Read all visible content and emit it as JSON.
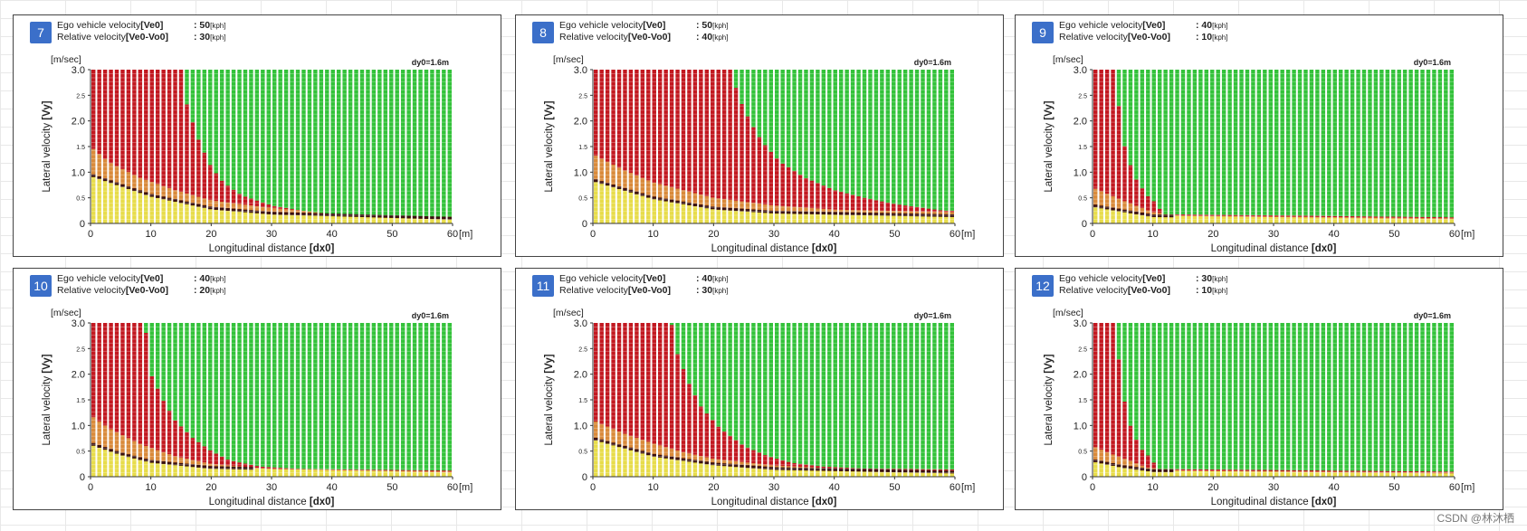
{
  "common": {
    "y_unit": "[m/sec]",
    "x_unit": "[m]",
    "dy0": "dy0=1.6m",
    "ylabel": "Lateral velocity",
    "ylabel_suffix": "[Vy]",
    "xlabel": "Longitudinal distance",
    "xlabel_suffix": "[dx0]",
    "ego_label": "Ego vehicle velocity",
    "ego_var": "[Ve0]",
    "rel_label": "Relative velocity",
    "rel_var": "[Ve0-Vo0]",
    "speed_unit": "[kph]",
    "colon": ": "
  },
  "colors": {
    "red": "#c21820",
    "green": "#33c23a",
    "orange": "#d98a3a",
    "yellow": "#e7dc4a",
    "dark": "#3a1010",
    "badge": "#3b6fc9"
  },
  "chart_data": [
    {
      "id": "7",
      "ego_velocity": "50",
      "relative_velocity": "30",
      "type": "scatter",
      "x_ticks": [
        "0",
        "10",
        "20",
        "30",
        "40",
        "50",
        "60"
      ],
      "y_ticks": [
        "0",
        "0.5",
        "1.0",
        "1.5",
        "2.0",
        "2.5",
        "3.0"
      ],
      "xlim": [
        0,
        60
      ],
      "ylim": [
        0,
        3
      ],
      "red_boundary": [
        [
          0,
          3
        ],
        [
          15,
          3
        ],
        [
          16,
          2.3
        ],
        [
          18,
          1.6
        ],
        [
          20,
          1.1
        ],
        [
          22,
          0.8
        ],
        [
          25,
          0.55
        ],
        [
          30,
          0.35
        ],
        [
          35,
          0.25
        ],
        [
          40,
          0.18
        ],
        [
          50,
          0.14
        ],
        [
          60,
          0.13
        ]
      ],
      "orange_boundary": [
        [
          0,
          1.5
        ],
        [
          3,
          1.2
        ],
        [
          8,
          0.9
        ],
        [
          14,
          0.65
        ],
        [
          20,
          0.45
        ],
        [
          30,
          0.3
        ],
        [
          40,
          0.2
        ],
        [
          60,
          0.13
        ]
      ],
      "yellow_boundary": [
        [
          0,
          0.95
        ],
        [
          5,
          0.75
        ],
        [
          10,
          0.55
        ],
        [
          20,
          0.3
        ],
        [
          30,
          0.2
        ],
        [
          60,
          0.1
        ]
      ]
    },
    {
      "id": "8",
      "ego_velocity": "50",
      "relative_velocity": "40",
      "type": "scatter",
      "x_ticks": [
        "0",
        "10",
        "20",
        "30",
        "40",
        "50",
        "60"
      ],
      "y_ticks": [
        "0",
        "0.5",
        "1.0",
        "1.5",
        "2.0",
        "2.5",
        "3.0"
      ],
      "xlim": [
        0,
        60
      ],
      "ylim": [
        0,
        3
      ],
      "red_boundary": [
        [
          0,
          3
        ],
        [
          23,
          3
        ],
        [
          24,
          2.5
        ],
        [
          26,
          2.0
        ],
        [
          28,
          1.6
        ],
        [
          31,
          1.2
        ],
        [
          35,
          0.9
        ],
        [
          40,
          0.65
        ],
        [
          45,
          0.5
        ],
        [
          50,
          0.38
        ],
        [
          55,
          0.3
        ],
        [
          58,
          0.25
        ],
        [
          60,
          0.25
        ]
      ],
      "orange_boundary": [
        [
          0,
          1.35
        ],
        [
          5,
          1.05
        ],
        [
          10,
          0.8
        ],
        [
          20,
          0.5
        ],
        [
          30,
          0.35
        ],
        [
          40,
          0.27
        ],
        [
          60,
          0.22
        ]
      ],
      "yellow_boundary": [
        [
          0,
          0.85
        ],
        [
          10,
          0.5
        ],
        [
          20,
          0.3
        ],
        [
          30,
          0.22
        ],
        [
          60,
          0.15
        ]
      ]
    },
    {
      "id": "9",
      "ego_velocity": "40",
      "relative_velocity": "10",
      "type": "scatter",
      "x_ticks": [
        "0",
        "10",
        "20",
        "30",
        "40",
        "50",
        "60"
      ],
      "y_ticks": [
        "0",
        "0.5",
        "1.0",
        "1.5",
        "2.0",
        "2.5",
        "3.0"
      ],
      "xlim": [
        0,
        60
      ],
      "ylim": [
        0,
        3
      ],
      "red_boundary": [
        [
          0,
          3
        ],
        [
          4,
          3
        ],
        [
          4.5,
          2.0
        ],
        [
          5.5,
          1.4
        ],
        [
          7,
          0.9
        ],
        [
          9,
          0.55
        ],
        [
          10.5,
          0.4
        ],
        [
          11,
          0.3
        ],
        [
          12,
          0.18
        ],
        [
          60,
          0.12
        ]
      ],
      "orange_boundary": [
        [
          0,
          0.7
        ],
        [
          3,
          0.55
        ],
        [
          6,
          0.4
        ],
        [
          10,
          0.22
        ],
        [
          15,
          0.15
        ],
        [
          60,
          0.1
        ]
      ],
      "yellow_boundary": [
        [
          0,
          0.35
        ],
        [
          5,
          0.25
        ],
        [
          10,
          0.15
        ],
        [
          60,
          0.08
        ]
      ]
    },
    {
      "id": "10",
      "ego_velocity": "40",
      "relative_velocity": "20",
      "type": "scatter",
      "x_ticks": [
        "0",
        "10",
        "20",
        "30",
        "40",
        "50",
        "60"
      ],
      "y_ticks": [
        "0",
        "0.5",
        "1.0",
        "1.5",
        "2.0",
        "2.5",
        "3.0"
      ],
      "xlim": [
        0,
        60
      ],
      "ylim": [
        0,
        3
      ],
      "red_boundary": [
        [
          0,
          3
        ],
        [
          9,
          3
        ],
        [
          10,
          2.0
        ],
        [
          12,
          1.5
        ],
        [
          14,
          1.1
        ],
        [
          17,
          0.75
        ],
        [
          20,
          0.5
        ],
        [
          23,
          0.32
        ],
        [
          28,
          0.2
        ],
        [
          35,
          0.15
        ],
        [
          60,
          0.12
        ]
      ],
      "orange_boundary": [
        [
          0,
          1.2
        ],
        [
          3,
          0.95
        ],
        [
          8,
          0.65
        ],
        [
          14,
          0.4
        ],
        [
          20,
          0.25
        ],
        [
          30,
          0.15
        ],
        [
          60,
          0.1
        ]
      ],
      "yellow_boundary": [
        [
          0,
          0.65
        ],
        [
          5,
          0.45
        ],
        [
          10,
          0.3
        ],
        [
          20,
          0.18
        ],
        [
          60,
          0.08
        ]
      ]
    },
    {
      "id": "11",
      "ego_velocity": "40",
      "relative_velocity": "30",
      "type": "scatter",
      "x_ticks": [
        "0",
        "10",
        "20",
        "30",
        "40",
        "50",
        "60"
      ],
      "y_ticks": [
        "0",
        "0.5",
        "1.0",
        "1.5",
        "2.0",
        "2.5",
        "3.0"
      ],
      "xlim": [
        0,
        60
      ],
      "ylim": [
        0,
        3
      ],
      "red_boundary": [
        [
          0,
          3
        ],
        [
          13,
          3
        ],
        [
          14,
          2.4
        ],
        [
          16,
          1.8
        ],
        [
          18,
          1.35
        ],
        [
          21,
          0.95
        ],
        [
          25,
          0.6
        ],
        [
          29,
          0.4
        ],
        [
          33,
          0.27
        ],
        [
          38,
          0.2
        ],
        [
          45,
          0.16
        ],
        [
          60,
          0.14
        ]
      ],
      "orange_boundary": [
        [
          0,
          1.1
        ],
        [
          5,
          0.85
        ],
        [
          10,
          0.65
        ],
        [
          15,
          0.48
        ],
        [
          20,
          0.35
        ],
        [
          30,
          0.22
        ],
        [
          40,
          0.16
        ],
        [
          60,
          0.12
        ]
      ],
      "yellow_boundary": [
        [
          0,
          0.75
        ],
        [
          10,
          0.42
        ],
        [
          20,
          0.25
        ],
        [
          30,
          0.16
        ],
        [
          60,
          0.09
        ]
      ]
    },
    {
      "id": "12",
      "ego_velocity": "30",
      "relative_velocity": "10",
      "type": "scatter",
      "x_ticks": [
        "0",
        "10",
        "20",
        "30",
        "40",
        "50",
        "60"
      ],
      "y_ticks": [
        "0",
        "0.5",
        "1.0",
        "1.5",
        "2.0",
        "2.5",
        "3.0"
      ],
      "xlim": [
        0,
        60
      ],
      "ylim": [
        0,
        3
      ],
      "red_boundary": [
        [
          0,
          3
        ],
        [
          4,
          3
        ],
        [
          4.5,
          2.0
        ],
        [
          5.5,
          1.35
        ],
        [
          6.5,
          0.9
        ],
        [
          8,
          0.55
        ],
        [
          9.5,
          0.38
        ],
        [
          10,
          0.3
        ],
        [
          11,
          0.15
        ],
        [
          60,
          0.1
        ]
      ],
      "orange_boundary": [
        [
          0,
          0.6
        ],
        [
          3,
          0.45
        ],
        [
          6,
          0.32
        ],
        [
          9,
          0.18
        ],
        [
          15,
          0.12
        ],
        [
          60,
          0.08
        ]
      ],
      "yellow_boundary": [
        [
          0,
          0.32
        ],
        [
          5,
          0.2
        ],
        [
          10,
          0.12
        ],
        [
          60,
          0.06
        ]
      ]
    }
  ],
  "watermark": "CSDN @林沐栖"
}
